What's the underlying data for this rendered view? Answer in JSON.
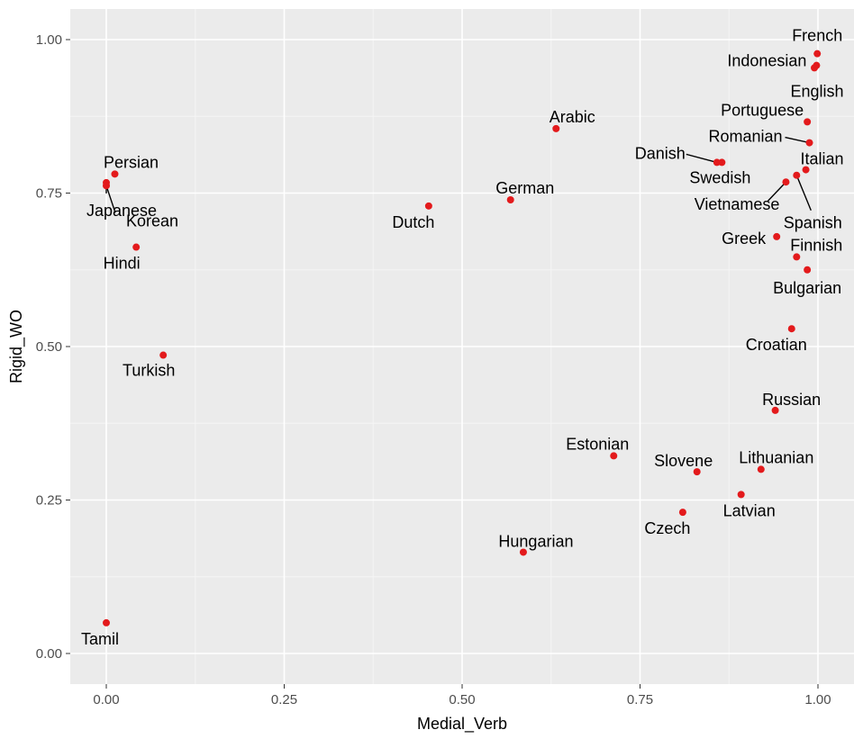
{
  "chart_data": {
    "type": "scatter",
    "title": "",
    "xlabel": "Medial_Verb",
    "ylabel": "Rigid_WO",
    "xlim": [
      -0.05,
      1.05
    ],
    "ylim": [
      -0.05,
      1.05
    ],
    "xticks": [
      {
        "value": 0.0,
        "label": "0.00"
      },
      {
        "value": 0.25,
        "label": "0.25"
      },
      {
        "value": 0.5,
        "label": "0.50"
      },
      {
        "value": 0.75,
        "label": "0.75"
      },
      {
        "value": 1.0,
        "label": "1.00"
      }
    ],
    "yticks": [
      {
        "value": 0.0,
        "label": "0.00"
      },
      {
        "value": 0.25,
        "label": "0.25"
      },
      {
        "value": 0.5,
        "label": "0.50"
      },
      {
        "value": 0.75,
        "label": "0.75"
      },
      {
        "value": 1.0,
        "label": "1.00"
      }
    ],
    "grid": true,
    "point_color": "#e31a1c",
    "panel_color": "#ebebeb",
    "points": [
      {
        "label": "French",
        "x": 0.999,
        "y": 0.977
      },
      {
        "label": "Indonesian",
        "x": 0.998,
        "y": 0.958
      },
      {
        "label": "English",
        "x": 0.995,
        "y": 0.954
      },
      {
        "label": "Portuguese",
        "x": 0.985,
        "y": 0.866
      },
      {
        "label": "Romanian",
        "x": 0.988,
        "y": 0.832
      },
      {
        "label": "Italian",
        "x": 0.983,
        "y": 0.788
      },
      {
        "label": "Spanish",
        "x": 0.97,
        "y": 0.779
      },
      {
        "label": "Vietnamese",
        "x": 0.955,
        "y": 0.768
      },
      {
        "label": "Danish",
        "x": 0.858,
        "y": 0.8
      },
      {
        "label": "Swedish",
        "x": 0.865,
        "y": 0.8
      },
      {
        "label": "Arabic",
        "x": 0.632,
        "y": 0.855
      },
      {
        "label": "German",
        "x": 0.568,
        "y": 0.739
      },
      {
        "label": "Dutch",
        "x": 0.453,
        "y": 0.729
      },
      {
        "label": "Persian",
        "x": 0.012,
        "y": 0.781
      },
      {
        "label": "Japanese",
        "x": 0.0,
        "y": 0.767
      },
      {
        "label": "Korean",
        "x": 0.0,
        "y": 0.762
      },
      {
        "label": "Hindi",
        "x": 0.042,
        "y": 0.662
      },
      {
        "label": "Turkish",
        "x": 0.08,
        "y": 0.486
      },
      {
        "label": "Greek",
        "x": 0.942,
        "y": 0.679
      },
      {
        "label": "Finnish",
        "x": 0.97,
        "y": 0.646
      },
      {
        "label": "Bulgarian",
        "x": 0.985,
        "y": 0.625
      },
      {
        "label": "Croatian",
        "x": 0.963,
        "y": 0.529
      },
      {
        "label": "Russian",
        "x": 0.94,
        "y": 0.396
      },
      {
        "label": "Estonian",
        "x": 0.713,
        "y": 0.322
      },
      {
        "label": "Slovene",
        "x": 0.83,
        "y": 0.296
      },
      {
        "label": "Lithuanian",
        "x": 0.92,
        "y": 0.3
      },
      {
        "label": "Latvian",
        "x": 0.892,
        "y": 0.259
      },
      {
        "label": "Czech",
        "x": 0.81,
        "y": 0.23
      },
      {
        "label": "Hungarian",
        "x": 0.586,
        "y": 0.165
      },
      {
        "label": "Tamil",
        "x": 0.0,
        "y": 0.05
      }
    ]
  }
}
